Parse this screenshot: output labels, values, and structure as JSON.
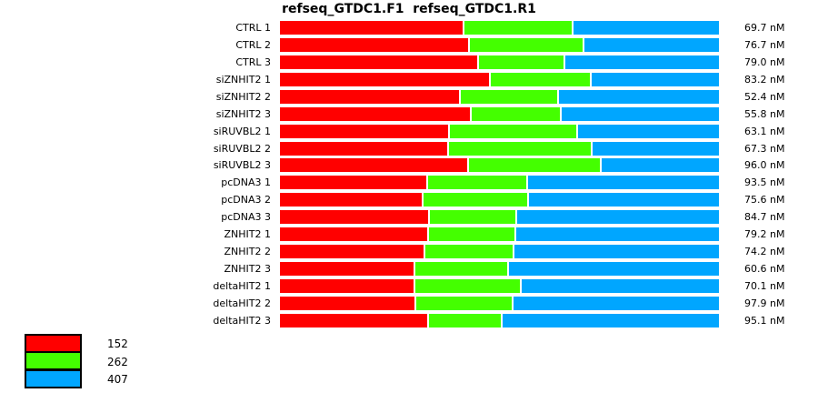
{
  "title": "refseq_GTDC1.F1  refseq_GTDC1.R1",
  "unit": "nM",
  "colors": {
    "red": "#FF0000",
    "green": "#44FF00",
    "blue": "#00A6FF",
    "background": "#FFFFFF",
    "text": "#000000"
  },
  "legend": {
    "position": "bottom-left",
    "items": [
      {
        "label": "152",
        "color": "#FF0000"
      },
      {
        "label": "262",
        "color": "#44FF00"
      },
      {
        "label": "407",
        "color": "#00A6FF"
      }
    ]
  },
  "chart_data": {
    "type": "bar",
    "orientation": "horizontal",
    "stacked": true,
    "normalized_to_full_width": true,
    "grid": false,
    "title": "refseq_GTDC1.F1  refseq_GTDC1.R1",
    "categories": [
      "CTRL 1",
      "CTRL 2",
      "CTRL 3",
      "siZNHIT2 1",
      "siZNHIT2 2",
      "siZNHIT2 3",
      "siRUVBL2 1",
      "siRUVBL2 2",
      "siRUVBL2 3",
      "pcDNA3 1",
      "pcDNA3 2",
      "pcDNA3 3",
      "ZNHIT2 1",
      "ZNHIT2 2",
      "ZNHIT2 3",
      "deltaHIT2 1",
      "deltaHIT2 2",
      "deltaHIT2 3"
    ],
    "series": [
      {
        "name": "152",
        "color": "#FF0000",
        "values_pct": [
          41.6,
          42.9,
          44.9,
          47.6,
          40.8,
          43.3,
          38.3,
          38.1,
          42.7,
          33.3,
          32.3,
          33.7,
          33.5,
          32.7,
          30.4,
          30.4,
          30.6,
          33.5
        ]
      },
      {
        "name": "262",
        "color": "#44FF00",
        "values_pct": [
          24.4,
          25.7,
          19.3,
          22.6,
          21.9,
          20.1,
          28.8,
          32.3,
          29.8,
          22.4,
          23.6,
          19.5,
          19.5,
          19.9,
          20.9,
          23.8,
          21.7,
          16.4
        ]
      },
      {
        "name": "407",
        "color": "#00A6FF",
        "values_pct": [
          32.9,
          30.6,
          35.0,
          29.0,
          36.4,
          35.8,
          32.1,
          28.8,
          26.7,
          43.5,
          43.3,
          46.0,
          46.2,
          46.6,
          47.8,
          44.9,
          46.8,
          49.3
        ]
      }
    ],
    "row_values_nM": [
      69.7,
      76.7,
      79.0,
      83.2,
      52.4,
      55.8,
      63.1,
      67.3,
      96.0,
      93.5,
      75.6,
      84.7,
      79.2,
      74.2,
      60.6,
      70.1,
      97.9,
      95.1
    ]
  }
}
